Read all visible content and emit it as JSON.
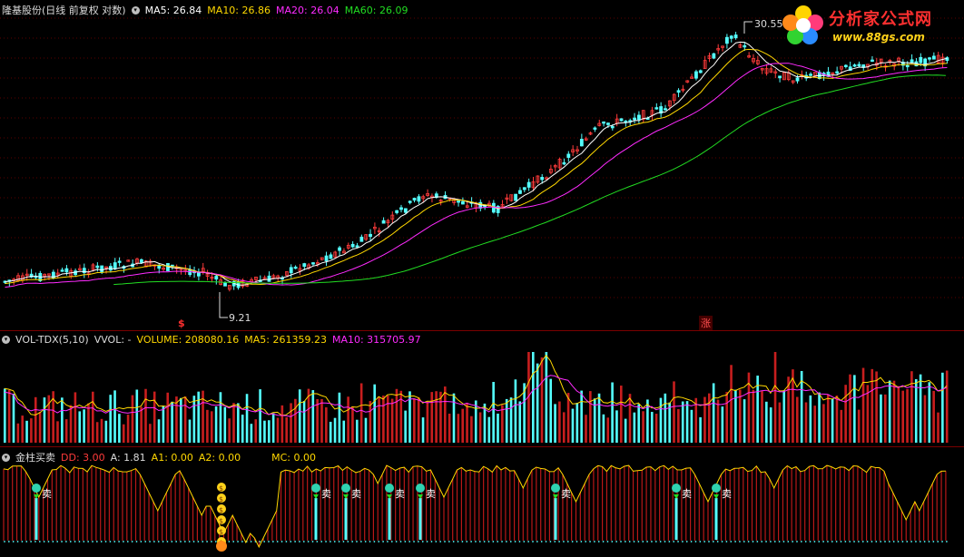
{
  "price": {
    "title": "隆基股份(日线 前复权 对数)",
    "ma5": "MA5: 26.84",
    "ma10": "MA10: 26.86",
    "ma20": "MA20: 26.04",
    "ma60": "MA60: 26.09",
    "high_label": "30.55",
    "low_label": "9.21",
    "marker_s": "$",
    "marker_zhang": "涨",
    "colors": {
      "ma5": "#ffffff",
      "ma10": "#ffd700",
      "ma20": "#ff2bff",
      "ma60": "#22dd22",
      "up": "#ff3b3b",
      "down": "#54ffff"
    }
  },
  "volume": {
    "title": "VOL-TDX(5,10)",
    "vvol": "VVOL: -",
    "volume": "VOLUME: 208080.16",
    "ma5": "MA5: 261359.23",
    "ma10": "MA10: 315705.97"
  },
  "indicator": {
    "title": "金柱买卖",
    "dd": "DD: 3.00",
    "a": "A: 1.81",
    "a1": "A1: 0.00",
    "a2": "A2: 0.00",
    "mc": "MC: 0.00",
    "sell_label": "卖",
    "buy_symbol": "$",
    "sell_signals": 8
  },
  "logo": {
    "name": "分析家公式网",
    "url": "www.88gs.com"
  }
}
